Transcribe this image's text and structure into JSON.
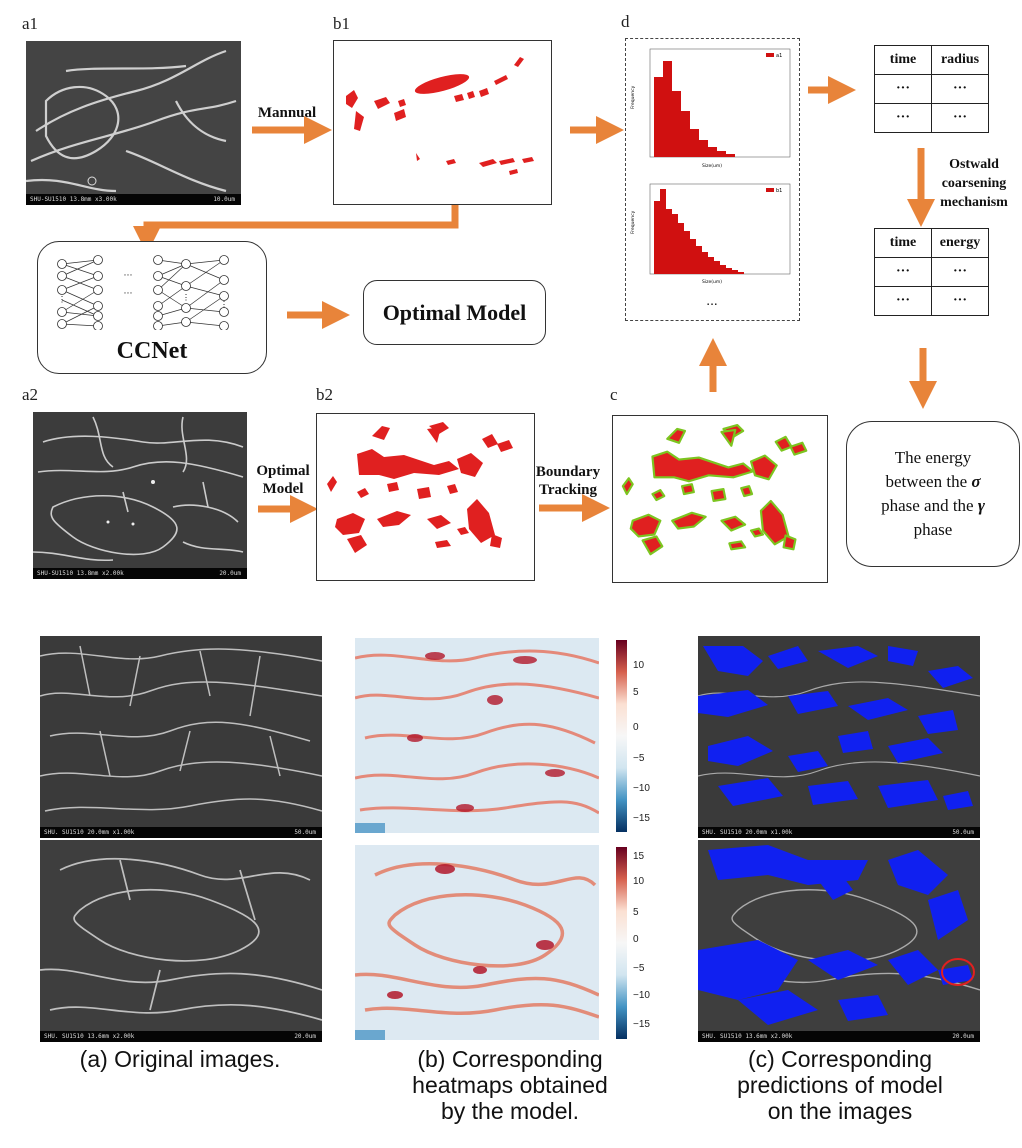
{
  "panels": {
    "a1": "a1",
    "b1": "b1",
    "d": "d",
    "a2": "a2",
    "b2": "b2",
    "c": "c"
  },
  "arrows": {
    "manual": "Mannual",
    "optimal_model_1": "Optimal",
    "optimal_model_2": "Model",
    "boundary_1": "Boundary",
    "boundary_2": "Tracking"
  },
  "ccnet": {
    "label": "CCNet",
    "dots": "···"
  },
  "optimal_box": "Optimal Model",
  "histograms": {
    "legend1": "a1",
    "legend2": "b1",
    "ellipsis": "...",
    "ylabel": "Frequency",
    "xlabel": "Size(um)"
  },
  "table_radius": {
    "headers": [
      "time",
      "radius"
    ],
    "rows": [
      [
        "···",
        "···"
      ],
      [
        "···",
        "···"
      ]
    ]
  },
  "ostwald": [
    "Ostwald",
    "coarsening",
    "mechanism"
  ],
  "table_energy": {
    "headers": [
      "time",
      "energy"
    ],
    "rows": [
      [
        "···",
        "···"
      ],
      [
        "···",
        "···"
      ]
    ]
  },
  "energy_box": {
    "line1": "The energy",
    "line2a": "between the ",
    "sigma": "σ",
    "line3a": "phase and the ",
    "gamma": "γ",
    "line4": "phase"
  },
  "sem_bars": {
    "a1": {
      "left": "SHU-SU1510 13.8mm x3.00k",
      "right": "10.0um"
    },
    "a2": {
      "left": "SHU-SU1510 13.8mm x2.00k",
      "right": "20.0um"
    },
    "bottom_top": {
      "left": "SHU. SU1510 20.0mm x1.00k",
      "right": "50.0um"
    },
    "bottom_bot": {
      "left": "SHU. SU1510 13.6mm x2.00k",
      "right": "20.0um"
    }
  },
  "colorbar_top": [
    "10",
    "5",
    "0",
    "−5",
    "−10",
    "−15"
  ],
  "colorbar_bot": [
    "15",
    "10",
    "5",
    "0",
    "−5",
    "−10",
    "−15"
  ],
  "captions": {
    "a": "(a) Original images.",
    "b1": "(b) Corresponding",
    "b2": "heatmaps obtained",
    "b3": "by the model.",
    "c1": "(c) Corresponding",
    "c2": "predictions of model",
    "c3": "on the images"
  },
  "colors": {
    "arrow": "#e8843a",
    "red": "#e02020",
    "blue": "#1020f0",
    "green": "#7cc520"
  }
}
